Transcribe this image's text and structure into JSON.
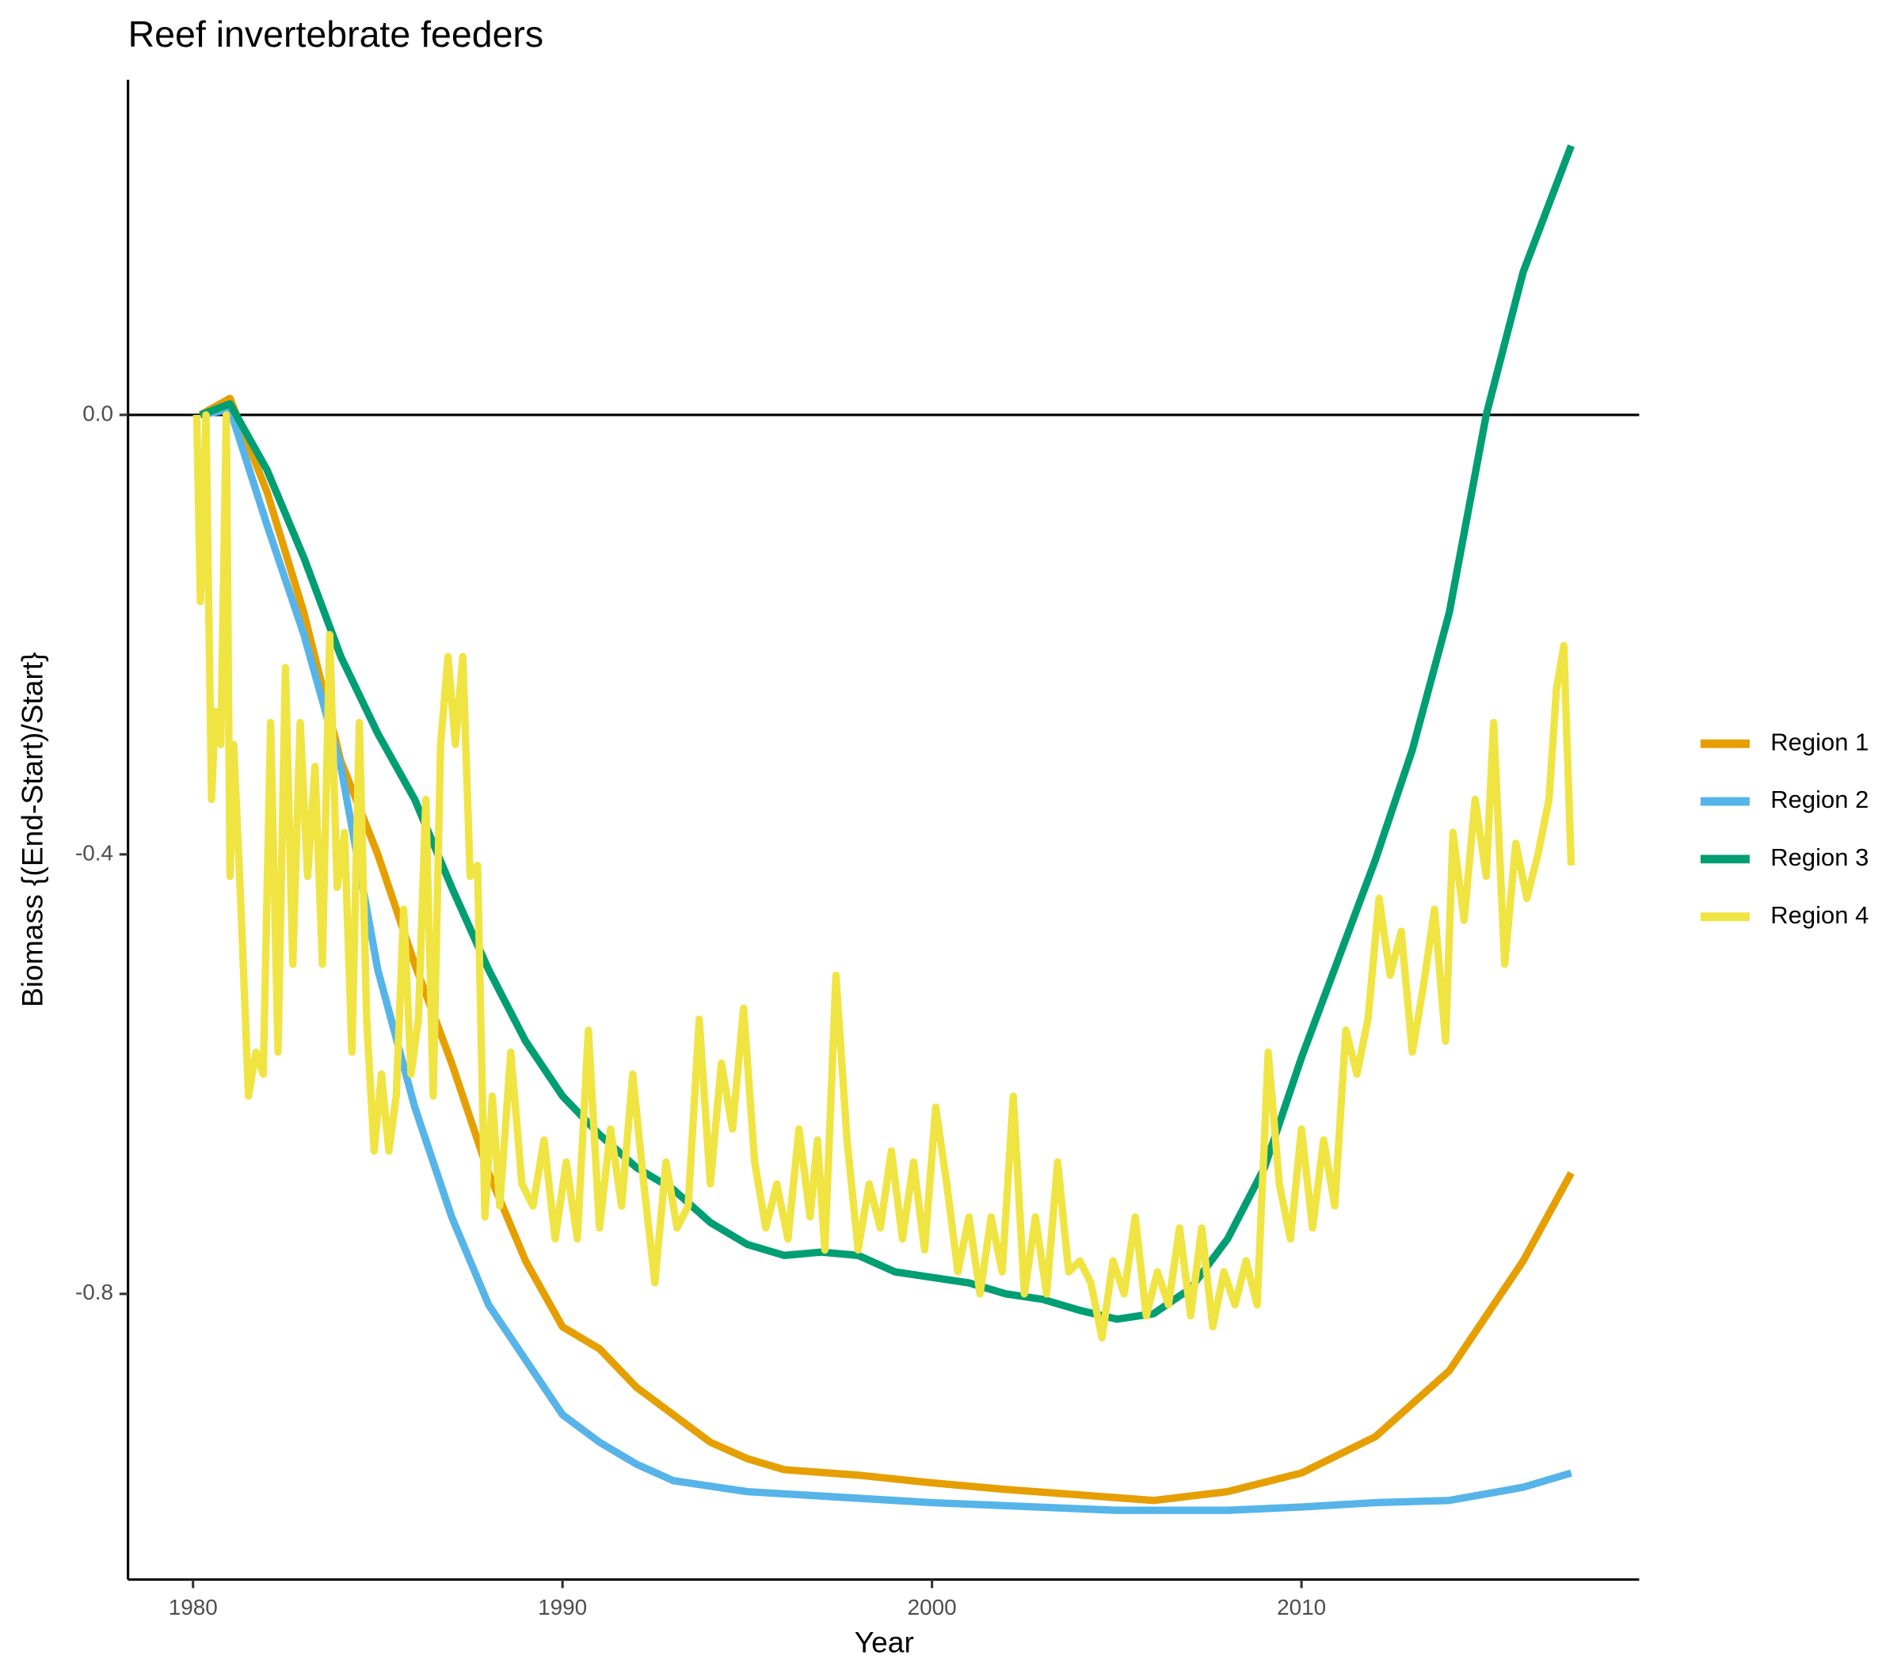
{
  "chart_data": {
    "type": "line",
    "title": "Reef invertebrate feeders",
    "x_label": "Year",
    "y_label": "Biomass {(End-Start)/Start}",
    "xlim": [
      1978.24,
      2019.14
    ],
    "ylim": [
      -1.06,
      0.305
    ],
    "xticks": [
      1980,
      1990,
      2000,
      2010
    ],
    "yticks": [
      -0.8,
      -0.4,
      {
        "value": 0,
        "label": "0.0"
      }
    ],
    "reference_line": 0,
    "grid": false,
    "legend": "right",
    "series": [
      {
        "name": "Region 1",
        "color": "#E69F00",
        "x": [
          1980.2,
          1981,
          1982,
          1983,
          1984,
          1985,
          1986,
          1987,
          1988,
          1989,
          1990,
          1991,
          1992,
          1993,
          1994,
          1995,
          1996,
          1998,
          2000,
          2002,
          2004,
          2006,
          2008,
          2010,
          2012,
          2014,
          2015,
          2016,
          2017.3
        ],
        "values": [
          0,
          0.015,
          -0.07,
          -0.18,
          -0.315,
          -0.4,
          -0.5,
          -0.59,
          -0.69,
          -0.77,
          -0.83,
          -0.85,
          -0.885,
          -0.91,
          -0.935,
          -0.95,
          -0.96,
          -0.965,
          -0.972,
          -0.978,
          -0.983,
          -0.988,
          -0.98,
          -0.963,
          -0.93,
          -0.87,
          -0.82,
          -0.77,
          -0.69
        ]
      },
      {
        "name": "Region 2",
        "color": "#56B4E9",
        "x": [
          1980.2,
          1981,
          1982,
          1983,
          1984,
          1985,
          1986,
          1987,
          1988,
          1989,
          1990,
          1991,
          1992,
          1993,
          1995,
          2000,
          2005,
          2008,
          2010,
          2012,
          2014,
          2016,
          2017.3
        ],
        "values": [
          0,
          0.005,
          -0.1,
          -0.2,
          -0.32,
          -0.505,
          -0.63,
          -0.73,
          -0.81,
          -0.86,
          -0.91,
          -0.935,
          -0.955,
          -0.97,
          -0.98,
          -0.99,
          -0.997,
          -0.997,
          -0.994,
          -0.99,
          -0.988,
          -0.976,
          -0.963
        ]
      },
      {
        "name": "Region 3",
        "color": "#009E73",
        "x": [
          1980.2,
          1981,
          1982,
          1983,
          1984,
          1985,
          1986,
          1987,
          1988,
          1989,
          1990,
          1991,
          1992,
          1993,
          1994,
          1995,
          1996,
          1997,
          1998,
          1999,
          2000,
          2001,
          2002,
          2003,
          2004,
          2005,
          2006,
          2007,
          2008,
          2009,
          2010,
          2011,
          2012,
          2013,
          2014,
          2015,
          2016,
          2017.3
        ],
        "values": [
          0,
          0.01,
          -0.05,
          -0.13,
          -0.22,
          -0.29,
          -0.35,
          -0.43,
          -0.505,
          -0.57,
          -0.62,
          -0.655,
          -0.685,
          -0.705,
          -0.735,
          -0.755,
          -0.765,
          -0.762,
          -0.765,
          -0.78,
          -0.785,
          -0.79,
          -0.8,
          -0.805,
          -0.815,
          -0.823,
          -0.818,
          -0.795,
          -0.75,
          -0.685,
          -0.585,
          -0.495,
          -0.405,
          -0.305,
          -0.18,
          0,
          0.13,
          0.245
        ]
      },
      {
        "name": "Region 4",
        "color": "#F0E442",
        "x": [
          1980.1,
          1980.2,
          1980.35,
          1980.5,
          1980.6,
          1980.75,
          1980.9,
          1981.0,
          1981.1,
          1981.3,
          1981.5,
          1981.7,
          1981.9,
          1982.1,
          1982.3,
          1982.5,
          1982.7,
          1982.9,
          1983.1,
          1983.3,
          1983.5,
          1983.7,
          1983.9,
          1984.1,
          1984.3,
          1984.5,
          1984.7,
          1984.9,
          1985.1,
          1985.3,
          1985.5,
          1985.7,
          1985.9,
          1986.1,
          1986.3,
          1986.5,
          1986.7,
          1986.9,
          1987.1,
          1987.3,
          1987.5,
          1987.7,
          1987.9,
          1988.1,
          1988.3,
          1988.6,
          1988.9,
          1989.2,
          1989.5,
          1989.8,
          1990.1,
          1990.4,
          1990.7,
          1991.0,
          1991.3,
          1991.6,
          1991.9,
          1992.2,
          1992.5,
          1992.8,
          1993.1,
          1993.4,
          1993.7,
          1994.0,
          1994.3,
          1994.6,
          1994.9,
          1995.2,
          1995.5,
          1995.8,
          1996.1,
          1996.4,
          1996.7,
          1996.9,
          1997.1,
          1997.4,
          1997.7,
          1998.0,
          1998.3,
          1998.6,
          1998.9,
          1999.2,
          1999.5,
          1999.8,
          2000.1,
          2000.4,
          2000.7,
          2001.0,
          2001.3,
          2001.6,
          2001.9,
          2002.2,
          2002.5,
          2002.8,
          2003.1,
          2003.4,
          2003.7,
          2004.0,
          2004.3,
          2004.6,
          2004.9,
          2005.2,
          2005.5,
          2005.8,
          2006.1,
          2006.4,
          2006.7,
          2007.0,
          2007.3,
          2007.6,
          2007.9,
          2008.2,
          2008.5,
          2008.8,
          2009.1,
          2009.4,
          2009.7,
          2010.0,
          2010.3,
          2010.6,
          2010.9,
          2011.2,
          2011.5,
          2011.8,
          2012.1,
          2012.4,
          2012.7,
          2013.0,
          2013.3,
          2013.6,
          2013.9,
          2014.1,
          2014.4,
          2014.7,
          2015.0,
          2015.2,
          2015.5,
          2015.8,
          2016.1,
          2016.4,
          2016.7,
          2016.9,
          2017.1,
          2017.3
        ],
        "values": [
          0,
          -0.17,
          0,
          -0.35,
          -0.27,
          -0.3,
          0,
          -0.42,
          -0.3,
          -0.45,
          -0.62,
          -0.58,
          -0.6,
          -0.28,
          -0.58,
          -0.23,
          -0.5,
          -0.28,
          -0.42,
          -0.32,
          -0.5,
          -0.2,
          -0.43,
          -0.38,
          -0.58,
          -0.28,
          -0.55,
          -0.67,
          -0.6,
          -0.67,
          -0.62,
          -0.45,
          -0.6,
          -0.55,
          -0.35,
          -0.62,
          -0.3,
          -0.22,
          -0.3,
          -0.22,
          -0.42,
          -0.41,
          -0.73,
          -0.62,
          -0.72,
          -0.58,
          -0.7,
          -0.72,
          -0.66,
          -0.75,
          -0.68,
          -0.75,
          -0.56,
          -0.74,
          -0.65,
          -0.72,
          -0.6,
          -0.7,
          -0.79,
          -0.68,
          -0.74,
          -0.72,
          -0.55,
          -0.7,
          -0.59,
          -0.65,
          -0.54,
          -0.68,
          -0.74,
          -0.7,
          -0.75,
          -0.65,
          -0.73,
          -0.66,
          -0.76,
          -0.51,
          -0.66,
          -0.76,
          -0.7,
          -0.74,
          -0.67,
          -0.75,
          -0.68,
          -0.76,
          -0.63,
          -0.7,
          -0.78,
          -0.73,
          -0.8,
          -0.73,
          -0.78,
          -0.62,
          -0.8,
          -0.73,
          -0.8,
          -0.68,
          -0.78,
          -0.77,
          -0.79,
          -0.84,
          -0.77,
          -0.8,
          -0.73,
          -0.82,
          -0.78,
          -0.81,
          -0.74,
          -0.82,
          -0.74,
          -0.83,
          -0.78,
          -0.81,
          -0.77,
          -0.81,
          -0.58,
          -0.7,
          -0.75,
          -0.65,
          -0.74,
          -0.66,
          -0.72,
          -0.56,
          -0.6,
          -0.55,
          -0.44,
          -0.51,
          -0.47,
          -0.58,
          -0.52,
          -0.45,
          -0.57,
          -0.38,
          -0.46,
          -0.35,
          -0.42,
          -0.28,
          -0.5,
          -0.39,
          -0.44,
          -0.4,
          -0.35,
          -0.25,
          -0.21,
          -0.41
        ]
      }
    ]
  }
}
